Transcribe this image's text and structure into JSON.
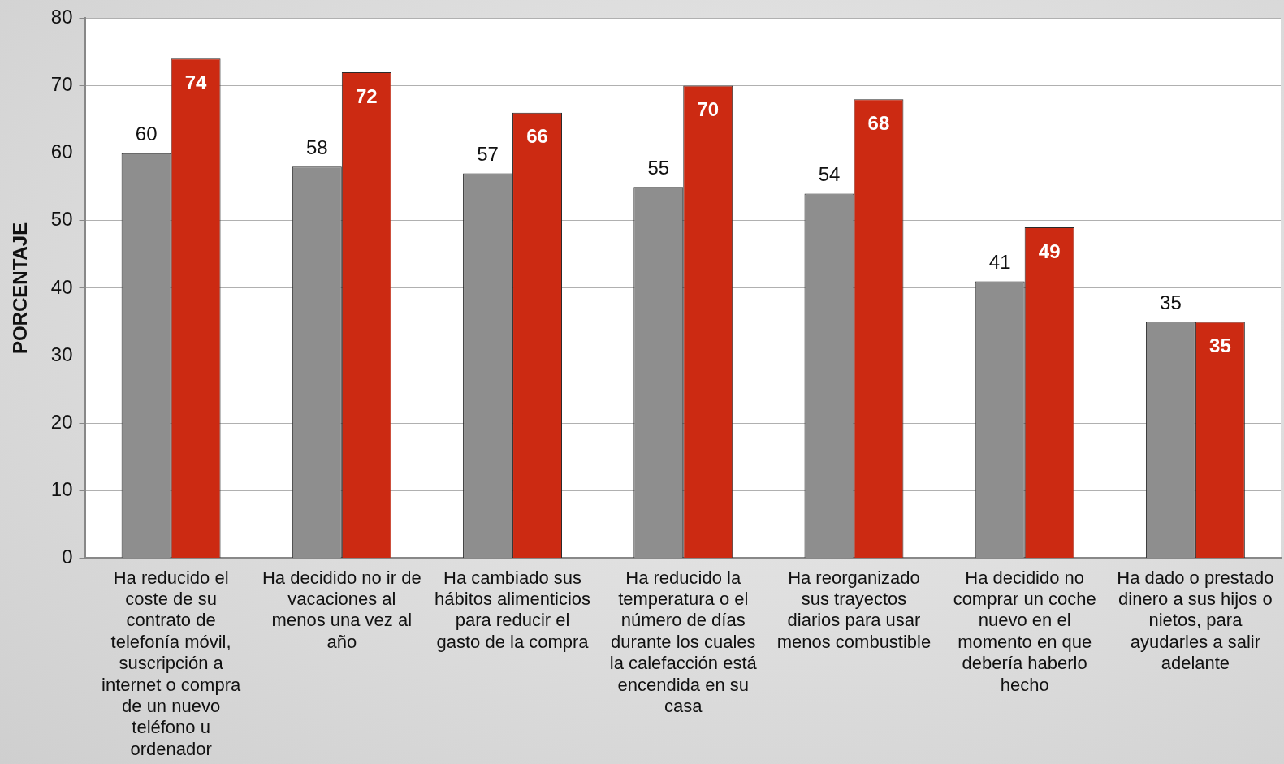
{
  "chart_data": {
    "type": "bar",
    "ylabel": "PORCENTAJE",
    "categories": [
      "Ha reducido el coste de su contrato de telefonía móvil, suscripción a internet o compra de un nuevo teléfono u ordenador",
      "Ha decidido no ir de vacaciones al menos una vez al año",
      "Ha cambiado sus hábitos alimenticios para reducir el gasto de la compra",
      "Ha reducido la temperatura o el número de días durante los cuales la calefacción está encendida en su casa",
      "Ha reorganizado sus trayectos diarios para usar menos combustible",
      "Ha decidido no comprar un coche nuevo en el momento en que debería haberlo hecho",
      "Ha dado o prestado dinero a sus hijos o nietos, para ayudarles a salir adelante"
    ],
    "series": [
      {
        "color": "#8e8e8e",
        "values": [
          60,
          58,
          57,
          55,
          54,
          41,
          35
        ]
      },
      {
        "color": "#cc2a12",
        "values": [
          74,
          72,
          66,
          70,
          68,
          49,
          35
        ]
      }
    ],
    "ylim": [
      0,
      80
    ],
    "yticks": [
      0,
      10,
      20,
      30,
      40,
      50,
      60,
      70,
      80
    ],
    "grid": "y",
    "data_labels": true
  }
}
